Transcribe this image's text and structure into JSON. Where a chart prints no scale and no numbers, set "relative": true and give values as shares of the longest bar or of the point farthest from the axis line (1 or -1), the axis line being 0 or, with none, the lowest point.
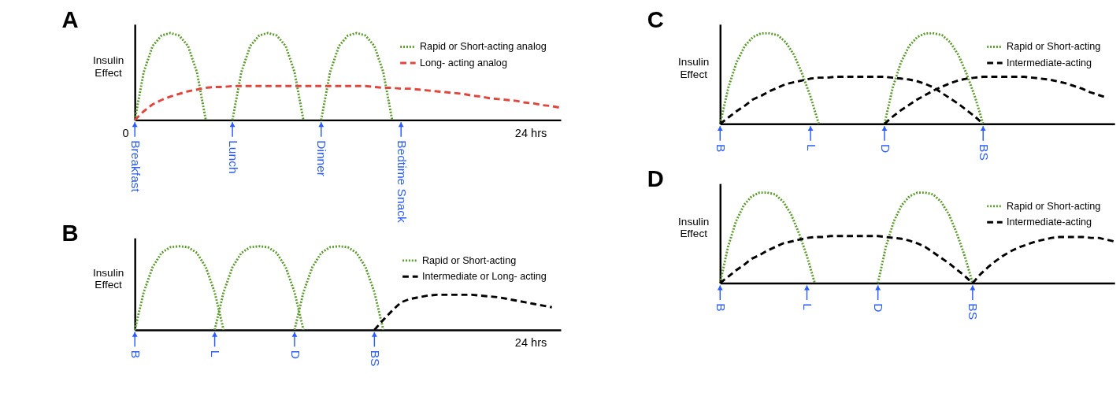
{
  "chart_data": [
    {
      "type": "line",
      "title": "A",
      "ylabel": "Insulin Effect",
      "relative": true,
      "legend": "top right",
      "categories": [
        "Breakfast",
        null,
        null,
        null,
        null,
        null,
        null,
        null,
        null,
        null,
        null,
        "Lunch",
        null,
        null,
        null,
        null,
        null,
        null,
        null,
        null,
        null,
        "Dinner",
        null,
        null,
        null,
        null,
        null,
        null,
        null,
        null,
        "Bedtime Snack",
        null,
        null,
        null,
        null,
        null,
        null,
        null,
        null,
        null,
        null,
        null,
        null,
        null,
        null,
        null,
        null,
        null,
        null
      ],
      "series": [
        {
          "name": "Rapid or Short-acting analog",
          "color": "#5a9a2a",
          "line_style": "dotted",
          "values": [
            0,
            0.55,
            0.85,
            0.97,
            1,
            0.97,
            0.85,
            0.55,
            0,
            null,
            null,
            null,
            null,
            null,
            null,
            null,
            null,
            null,
            null,
            null,
            null,
            null,
            null,
            null,
            null,
            null,
            null,
            null,
            null,
            null,
            null,
            null,
            null,
            null,
            null,
            null,
            null,
            null,
            null,
            null,
            null,
            null,
            null,
            null,
            null,
            null,
            null,
            null,
            null
          ]
        },
        {
          "color": "#5a9a2a",
          "line_style": "dotted",
          "values": [
            null,
            null,
            null,
            null,
            null,
            null,
            null,
            null,
            null,
            null,
            null,
            0,
            0.55,
            0.85,
            0.97,
            1,
            0.97,
            0.85,
            0.55,
            0,
            null,
            null,
            null,
            null,
            null,
            null,
            null,
            null,
            null,
            null,
            null,
            null,
            null,
            null,
            null,
            null,
            null,
            null,
            null,
            null,
            null,
            null,
            null,
            null,
            null,
            null,
            null,
            null,
            null
          ]
        },
        {
          "color": "#5a9a2a",
          "line_style": "dotted",
          "values": [
            null,
            null,
            null,
            null,
            null,
            null,
            null,
            null,
            null,
            null,
            null,
            null,
            null,
            null,
            null,
            null,
            null,
            null,
            null,
            null,
            null,
            0,
            0.55,
            0.85,
            0.97,
            1,
            0.97,
            0.85,
            0.55,
            0,
            null,
            null,
            null,
            null,
            null,
            null,
            null,
            null,
            null,
            null,
            null,
            null,
            null,
            null,
            null,
            null,
            null,
            null,
            null
          ]
        },
        {
          "name": "Long- acting analog",
          "color": "#e0463c",
          "line_style": "dashed",
          "values": [
            0,
            0.1,
            0.18,
            0.23,
            0.27,
            0.3,
            0.33,
            0.35,
            0.37,
            0.38,
            0.38,
            0.39,
            0.39,
            0.39,
            0.39,
            0.39,
            0.39,
            0.39,
            0.39,
            0.39,
            0.39,
            0.39,
            0.39,
            0.39,
            0.39,
            0.39,
            0.39,
            0.38,
            0.37,
            0.37,
            0.36,
            0.36,
            0.35,
            0.34,
            0.33,
            0.32,
            0.31,
            0.3,
            0.28,
            0.27,
            0.25,
            0.24,
            0.23,
            0.22,
            0.2,
            0.19,
            0.17,
            0.16,
            0.14
          ]
        }
      ],
      "annotations": [
        "0",
        "24 hrs"
      ]
    },
    {
      "type": "line",
      "title": "B",
      "ylabel": "Insulin Effect",
      "relative": true,
      "legend": "top right",
      "categories": [
        "B",
        null,
        null,
        null,
        null,
        null,
        null,
        null,
        null,
        "L",
        null,
        null,
        null,
        null,
        null,
        null,
        null,
        null,
        "D",
        null,
        null,
        null,
        null,
        null,
        null,
        null,
        null,
        "BS",
        null,
        null,
        null,
        null,
        null,
        null,
        null,
        null,
        null,
        null,
        null,
        null,
        null,
        null,
        null,
        null,
        null,
        null,
        null,
        null,
        null
      ],
      "series": [
        {
          "name": "Rapid or Short-acting",
          "color": "#5a9a2a",
          "line_style": "dotted",
          "values": [
            0,
            0.45,
            0.75,
            0.92,
            0.99,
            1,
            0.99,
            0.92,
            0.75,
            0.45,
            0,
            null,
            null,
            null,
            null,
            null,
            null,
            null,
            null,
            null,
            null,
            null,
            null,
            null,
            null,
            null,
            null,
            null,
            null,
            null,
            null,
            null,
            null,
            null,
            null,
            null,
            null,
            null,
            null,
            null,
            null,
            null,
            null,
            null,
            null,
            null,
            null,
            null,
            null
          ]
        },
        {
          "color": "#5a9a2a",
          "line_style": "dotted",
          "values": [
            null,
            null,
            null,
            null,
            null,
            null,
            null,
            null,
            null,
            0,
            0.45,
            0.75,
            0.92,
            0.99,
            1,
            0.99,
            0.92,
            0.75,
            0.45,
            0,
            null,
            null,
            null,
            null,
            null,
            null,
            null,
            null,
            null,
            null,
            null,
            null,
            null,
            null,
            null,
            null,
            null,
            null,
            null,
            null,
            null,
            null,
            null,
            null,
            null,
            null,
            null,
            null,
            null
          ]
        },
        {
          "color": "#5a9a2a",
          "line_style": "dotted",
          "values": [
            null,
            null,
            null,
            null,
            null,
            null,
            null,
            null,
            null,
            null,
            null,
            null,
            null,
            null,
            null,
            null,
            null,
            null,
            0,
            0.45,
            0.75,
            0.92,
            0.99,
            1,
            0.99,
            0.92,
            0.75,
            0.45,
            0,
            null,
            null,
            null,
            null,
            null,
            null,
            null,
            null,
            null,
            null,
            null,
            null,
            null,
            null,
            null,
            null,
            null,
            null,
            null,
            null
          ]
        },
        {
          "name": "Intermediate or Long- acting",
          "color": "#000000",
          "line_style": "dashed",
          "values": [
            null,
            null,
            null,
            null,
            null,
            null,
            null,
            null,
            null,
            null,
            null,
            null,
            null,
            null,
            null,
            null,
            null,
            null,
            null,
            null,
            null,
            null,
            null,
            null,
            null,
            null,
            null,
            0,
            0.12,
            0.23,
            0.33,
            0.37,
            0.39,
            0.41,
            0.42,
            0.42,
            0.42,
            0.42,
            0.42,
            0.41,
            0.4,
            0.39,
            0.37,
            0.35,
            0.33,
            0.31,
            0.29,
            0.27,
            null
          ]
        }
      ],
      "annotations": [
        "24 hrs"
      ]
    },
    {
      "type": "line",
      "title": "C",
      "ylabel": "Insulin Effect",
      "relative": true,
      "legend": "top right",
      "categories": [
        "B",
        null,
        null,
        null,
        null,
        null,
        null,
        null,
        null,
        null,
        null,
        "L",
        null,
        null,
        null,
        null,
        null,
        null,
        null,
        null,
        "D",
        null,
        null,
        null,
        null,
        null,
        null,
        null,
        null,
        null,
        null,
        null,
        "BS",
        null,
        null,
        null,
        null,
        null,
        null,
        null,
        null,
        null,
        null,
        null,
        null,
        null,
        null,
        null,
        null
      ],
      "series": [
        {
          "name": "Rapid or Short-acting",
          "color": "#5a9a2a",
          "line_style": "dotted",
          "values": [
            0,
            0.4,
            0.68,
            0.86,
            0.96,
            1,
            1,
            0.98,
            0.9,
            0.76,
            0.55,
            0.3,
            0,
            null,
            null,
            null,
            null,
            null,
            null,
            null,
            null,
            null,
            null,
            null,
            null,
            null,
            null,
            null,
            null,
            null,
            null,
            null,
            null,
            null,
            null,
            null,
            null,
            null,
            null,
            null,
            null,
            null,
            null,
            null,
            null,
            null,
            null,
            null,
            null
          ]
        },
        {
          "color": "#5a9a2a",
          "line_style": "dotted",
          "values": [
            null,
            null,
            null,
            null,
            null,
            null,
            null,
            null,
            null,
            null,
            null,
            null,
            null,
            null,
            null,
            null,
            null,
            null,
            null,
            null,
            0,
            0.4,
            0.68,
            0.86,
            0.96,
            1,
            1,
            0.98,
            0.9,
            0.76,
            0.55,
            0.3,
            0,
            null,
            null,
            null,
            null,
            null,
            null,
            null,
            null,
            null,
            null,
            null,
            null,
            null,
            null,
            null,
            null
          ]
        },
        {
          "name": "Intermediate-acting",
          "color": "#000000",
          "line_style": "dashed",
          "values": [
            0,
            0.07,
            0.14,
            0.2,
            0.27,
            0.31,
            0.36,
            0.4,
            0.44,
            0.46,
            0.48,
            0.5,
            0.51,
            0.51,
            0.52,
            0.52,
            0.52,
            0.52,
            0.52,
            0.52,
            0.52,
            0.51,
            0.5,
            0.49,
            0.47,
            0.44,
            0.4,
            0.34,
            0.28,
            0.22,
            0.15,
            0.08,
            0,
            null,
            null,
            null,
            null,
            null,
            null,
            null,
            null,
            null,
            null,
            null,
            null,
            null,
            null,
            null,
            null
          ]
        },
        {
          "color": "#000000",
          "line_style": "dashed",
          "values": [
            null,
            null,
            null,
            null,
            null,
            null,
            null,
            null,
            null,
            null,
            null,
            null,
            null,
            null,
            null,
            null,
            null,
            null,
            null,
            null,
            0,
            0.08,
            0.15,
            0.21,
            0.27,
            0.32,
            0.37,
            0.41,
            0.45,
            0.48,
            0.5,
            0.51,
            0.52,
            0.52,
            0.52,
            0.52,
            0.52,
            0.52,
            0.51,
            0.5,
            0.49,
            0.47,
            0.45,
            0.42,
            0.39,
            0.35,
            0.32,
            0.29,
            null
          ]
        }
      ]
    },
    {
      "type": "line",
      "title": "D",
      "ylabel": "Insulin Effect",
      "relative": true,
      "legend": "top right",
      "categories": [
        "B",
        null,
        null,
        null,
        null,
        null,
        null,
        null,
        null,
        null,
        null,
        "L",
        null,
        null,
        null,
        null,
        null,
        null,
        null,
        null,
        "D",
        null,
        null,
        null,
        null,
        null,
        null,
        null,
        null,
        null,
        null,
        null,
        "BS",
        null,
        null,
        null,
        null,
        null,
        null,
        null,
        null,
        null,
        null,
        null,
        null,
        null,
        null,
        null,
        null,
        null,
        null
      ],
      "series": [
        {
          "name": "Rapid or Short-acting",
          "color": "#5a9a2a",
          "line_style": "dotted",
          "values": [
            0,
            0.4,
            0.68,
            0.86,
            0.96,
            1,
            1,
            0.98,
            0.9,
            0.76,
            0.55,
            0.3,
            0,
            null,
            null,
            null,
            null,
            null,
            null,
            null,
            null,
            null,
            null,
            null,
            null,
            null,
            null,
            null,
            null,
            null,
            null,
            null,
            null,
            null,
            null,
            null,
            null,
            null,
            null,
            null,
            null,
            null,
            null,
            null,
            null,
            null,
            null,
            null,
            null,
            null,
            null
          ]
        },
        {
          "color": "#5a9a2a",
          "line_style": "dotted",
          "values": [
            null,
            null,
            null,
            null,
            null,
            null,
            null,
            null,
            null,
            null,
            null,
            null,
            null,
            null,
            null,
            null,
            null,
            null,
            null,
            null,
            0,
            0.4,
            0.68,
            0.86,
            0.96,
            1,
            1,
            0.98,
            0.9,
            0.76,
            0.55,
            0.3,
            0,
            null,
            null,
            null,
            null,
            null,
            null,
            null,
            null,
            null,
            null,
            null,
            null,
            null,
            null,
            null,
            null,
            null,
            null
          ]
        },
        {
          "name": "Intermediate-acting",
          "color": "#000000",
          "line_style": "dashed",
          "values": [
            0,
            0.07,
            0.14,
            0.2,
            0.27,
            0.31,
            0.36,
            0.4,
            0.44,
            0.46,
            0.48,
            0.5,
            0.51,
            0.51,
            0.52,
            0.52,
            0.52,
            0.52,
            0.52,
            0.52,
            0.52,
            0.51,
            0.5,
            0.49,
            0.47,
            0.44,
            0.4,
            0.34,
            0.28,
            0.22,
            0.15,
            0.08,
            0,
            null,
            null,
            null,
            null,
            null,
            null,
            null,
            null,
            null,
            null,
            null,
            null,
            null,
            null,
            null,
            null,
            null,
            null
          ]
        },
        {
          "color": "#000000",
          "line_style": "dashed",
          "values": [
            null,
            null,
            null,
            null,
            null,
            null,
            null,
            null,
            null,
            null,
            null,
            null,
            null,
            null,
            null,
            null,
            null,
            null,
            null,
            null,
            null,
            null,
            null,
            null,
            null,
            null,
            null,
            null,
            null,
            null,
            null,
            null,
            0,
            0.1,
            0.18,
            0.25,
            0.31,
            0.36,
            0.4,
            0.43,
            0.46,
            0.48,
            0.5,
            0.51,
            0.51,
            0.51,
            0.51,
            0.5,
            0.5,
            0.48,
            0.46
          ]
        }
      ]
    }
  ]
}
